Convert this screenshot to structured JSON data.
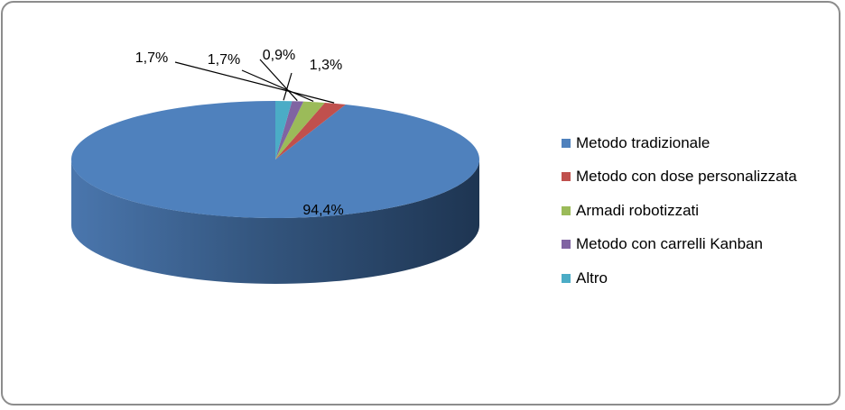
{
  "chart_data": {
    "type": "pie",
    "title": "",
    "slices": [
      {
        "name": "Metodo tradizionale",
        "value": 94.4,
        "label": "94,4%",
        "color": "#4F81BD"
      },
      {
        "name": "Metodo con dose personalizzata",
        "value": 1.7,
        "label": "1,7%",
        "color": "#C0504D"
      },
      {
        "name": "Armadi robotizzati",
        "value": 1.7,
        "label": "1,7%",
        "color": "#9BBB59"
      },
      {
        "name": "Metodo con carrelli Kanban",
        "value": 0.9,
        "label": "0,9%",
        "color": "#8064A2"
      },
      {
        "name": "Altro",
        "value": 1.3,
        "label": "1,3%",
        "color": "#4BACC6"
      }
    ],
    "legend_position": "right",
    "style": "3d"
  }
}
